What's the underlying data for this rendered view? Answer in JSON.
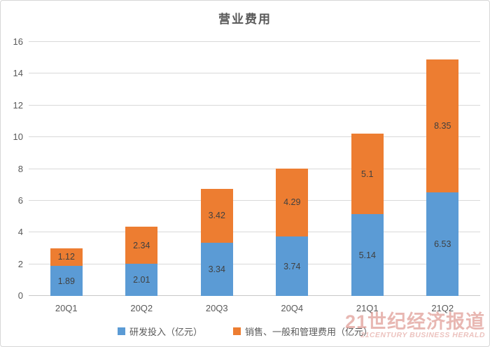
{
  "title": "营业费用",
  "watermark": {
    "line1": "21世纪经济报道",
    "line2": "21CENTURY BUSINESS HERALD"
  },
  "colors": {
    "series_blue": "#5B9BD5",
    "series_orange": "#ED7D31",
    "gridline": "#D9D9D9",
    "axis_text": "#595959",
    "bar_label_text": "#404040",
    "watermark_red": "#CD5F55"
  },
  "chart_data": {
    "type": "bar",
    "stacked": true,
    "title": "营业费用",
    "categories": [
      "20Q1",
      "20Q2",
      "20Q3",
      "20Q4",
      "21Q1",
      "21Q2"
    ],
    "series": [
      {
        "name": "研发投入（亿元）",
        "color": "#5B9BD5",
        "values": [
          1.89,
          2.01,
          3.34,
          3.74,
          5.14,
          6.53
        ]
      },
      {
        "name": "销售、一般和管理费用（亿元）",
        "color": "#ED7D31",
        "values": [
          1.12,
          2.34,
          3.42,
          4.29,
          5.1,
          8.35
        ]
      }
    ],
    "totals": [
      3.01,
      4.35,
      6.76,
      8.03,
      10.24,
      14.88
    ],
    "xlabel": "",
    "ylabel": "",
    "ylim": [
      0,
      16
    ],
    "ytick_step": 2,
    "yticks": [
      0,
      2,
      4,
      6,
      8,
      10,
      12,
      14,
      16
    ],
    "grid": true,
    "data_labels": true,
    "legend_position": "bottom"
  }
}
